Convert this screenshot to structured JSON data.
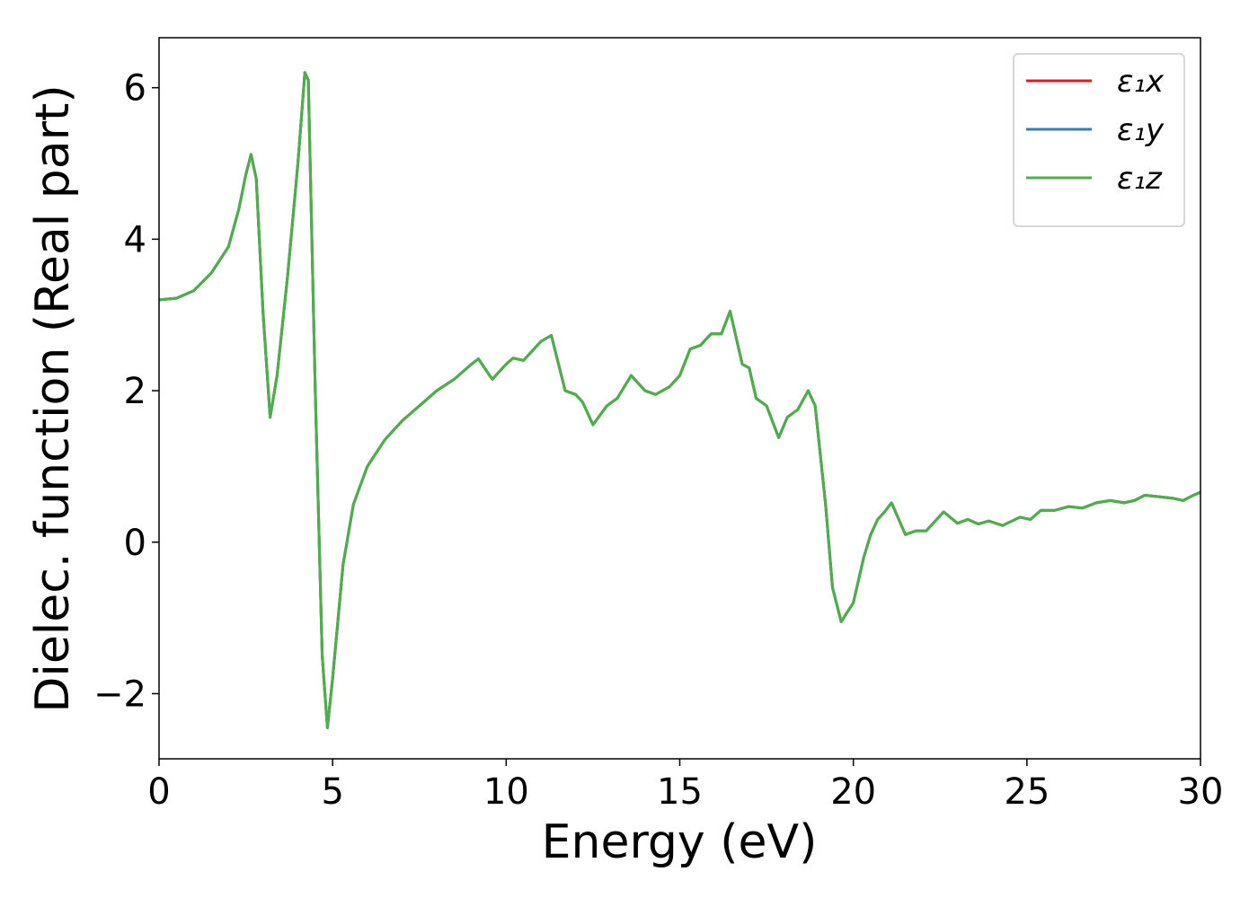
{
  "chart_data": {
    "type": "line",
    "xlabel": "Energy (eV)",
    "ylabel": "Dielec. function (Real part)",
    "x": [
      0,
      0.5,
      1.0,
      1.5,
      2.0,
      2.3,
      2.5,
      2.65,
      2.8,
      3.0,
      3.2,
      3.4,
      3.7,
      4.0,
      4.2,
      4.3,
      4.5,
      4.7,
      4.85,
      5.0,
      5.3,
      5.6,
      6.0,
      6.5,
      7.0,
      7.5,
      8.0,
      8.5,
      9.0,
      9.2,
      9.6,
      10.0,
      10.2,
      10.5,
      11.0,
      11.3,
      11.7,
      12.0,
      12.2,
      12.5,
      12.9,
      13.2,
      13.6,
      14.0,
      14.3,
      14.7,
      15.0,
      15.3,
      15.6,
      15.9,
      16.2,
      16.45,
      16.8,
      17.0,
      17.2,
      17.5,
      17.85,
      18.1,
      18.4,
      18.7,
      18.9,
      19.2,
      19.4,
      19.65,
      20.0,
      20.3,
      20.5,
      20.7,
      20.9,
      21.1,
      21.5,
      21.8,
      22.1,
      22.6,
      23.0,
      23.3,
      23.6,
      23.9,
      24.3,
      24.8,
      25.1,
      25.4,
      25.8,
      26.2,
      26.6,
      27.0,
      27.4,
      27.8,
      28.1,
      28.4,
      28.8,
      29.2,
      29.5,
      29.8,
      30.0
    ],
    "series": [
      {
        "name": "ε₁x",
        "color": "#e41a1c",
        "values": [
          3.2,
          3.22,
          3.32,
          3.55,
          3.9,
          4.4,
          4.85,
          5.12,
          4.8,
          3.0,
          1.65,
          2.2,
          3.5,
          5.0,
          6.2,
          6.1,
          2.0,
          -1.5,
          -2.45,
          -1.8,
          -0.3,
          0.5,
          1.0,
          1.35,
          1.6,
          1.8,
          2.0,
          2.15,
          2.35,
          2.42,
          2.15,
          2.35,
          2.43,
          2.4,
          2.65,
          2.73,
          2.0,
          1.95,
          1.85,
          1.55,
          1.8,
          1.9,
          2.2,
          2.0,
          1.95,
          2.05,
          2.2,
          2.55,
          2.6,
          2.75,
          2.75,
          3.05,
          2.35,
          2.3,
          1.9,
          1.8,
          1.38,
          1.65,
          1.75,
          2.0,
          1.8,
          0.5,
          -0.6,
          -1.05,
          -0.8,
          -0.2,
          0.1,
          0.3,
          0.4,
          0.52,
          0.1,
          0.15,
          0.15,
          0.4,
          0.25,
          0.3,
          0.24,
          0.28,
          0.22,
          0.33,
          0.3,
          0.42,
          0.42,
          0.47,
          0.45,
          0.52,
          0.55,
          0.52,
          0.55,
          0.62,
          0.6,
          0.58,
          0.55,
          0.62,
          0.66
        ]
      },
      {
        "name": "ε₁y",
        "color": "#377eb8",
        "values": [
          3.2,
          3.22,
          3.32,
          3.55,
          3.9,
          4.4,
          4.85,
          5.12,
          4.8,
          3.0,
          1.65,
          2.2,
          3.5,
          5.0,
          6.2,
          6.1,
          2.0,
          -1.5,
          -2.45,
          -1.8,
          -0.3,
          0.5,
          1.0,
          1.35,
          1.6,
          1.8,
          2.0,
          2.15,
          2.35,
          2.42,
          2.15,
          2.35,
          2.43,
          2.4,
          2.65,
          2.73,
          2.0,
          1.95,
          1.85,
          1.55,
          1.8,
          1.9,
          2.2,
          2.0,
          1.95,
          2.05,
          2.2,
          2.55,
          2.6,
          2.75,
          2.75,
          3.05,
          2.35,
          2.3,
          1.9,
          1.8,
          1.38,
          1.65,
          1.75,
          2.0,
          1.8,
          0.5,
          -0.6,
          -1.05,
          -0.8,
          -0.2,
          0.1,
          0.3,
          0.4,
          0.52,
          0.1,
          0.15,
          0.15,
          0.4,
          0.25,
          0.3,
          0.24,
          0.28,
          0.22,
          0.33,
          0.3,
          0.42,
          0.42,
          0.47,
          0.45,
          0.52,
          0.55,
          0.52,
          0.55,
          0.62,
          0.6,
          0.58,
          0.55,
          0.62,
          0.66
        ]
      },
      {
        "name": "ε₁z",
        "color": "#4daf4a",
        "values": [
          3.2,
          3.22,
          3.32,
          3.55,
          3.9,
          4.4,
          4.85,
          5.12,
          4.8,
          3.0,
          1.65,
          2.2,
          3.5,
          5.0,
          6.2,
          6.1,
          2.0,
          -1.5,
          -2.45,
          -1.8,
          -0.3,
          0.5,
          1.0,
          1.35,
          1.6,
          1.8,
          2.0,
          2.15,
          2.35,
          2.42,
          2.15,
          2.35,
          2.43,
          2.4,
          2.65,
          2.73,
          2.0,
          1.95,
          1.85,
          1.55,
          1.8,
          1.9,
          2.2,
          2.0,
          1.95,
          2.05,
          2.2,
          2.55,
          2.6,
          2.75,
          2.75,
          3.05,
          2.35,
          2.3,
          1.9,
          1.8,
          1.38,
          1.65,
          1.75,
          2.0,
          1.8,
          0.5,
          -0.6,
          -1.05,
          -0.8,
          -0.2,
          0.1,
          0.3,
          0.4,
          0.52,
          0.1,
          0.15,
          0.15,
          0.4,
          0.25,
          0.3,
          0.24,
          0.28,
          0.22,
          0.33,
          0.3,
          0.42,
          0.42,
          0.47,
          0.45,
          0.52,
          0.55,
          0.52,
          0.55,
          0.62,
          0.6,
          0.58,
          0.55,
          0.62,
          0.66
        ]
      }
    ],
    "xlim": [
      0,
      30
    ],
    "xticks": [
      0,
      5,
      10,
      15,
      20,
      25,
      30
    ],
    "ylim": [
      -2.86,
      6.66
    ],
    "yticks": [
      {
        "value": -2,
        "label": "−2"
      },
      0,
      2,
      4,
      6
    ],
    "legend": "upper right",
    "grid": false
  }
}
